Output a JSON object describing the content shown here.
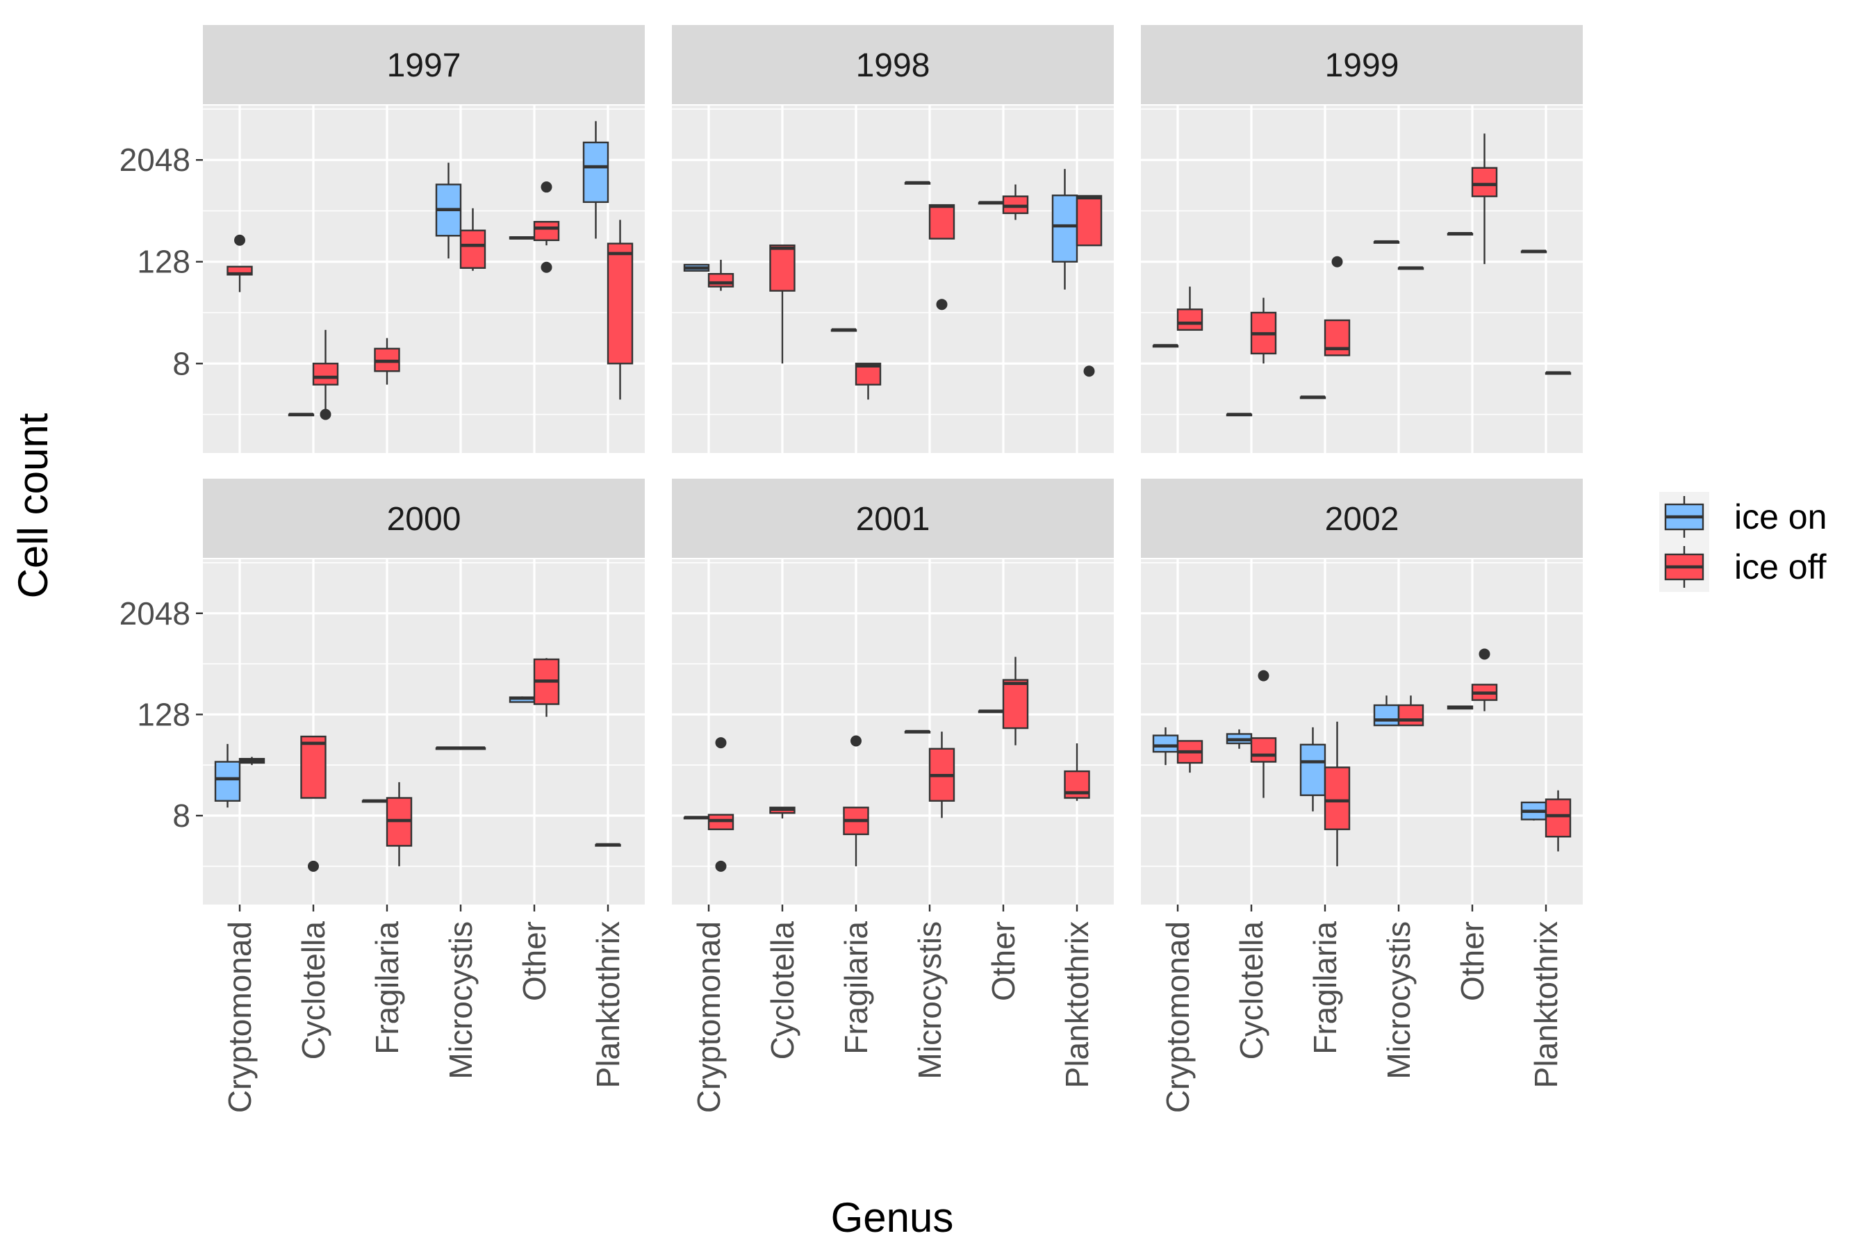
{
  "chart_data": {
    "type": "boxplot",
    "xlabel": "Genus",
    "ylabel": "Cell count",
    "y_scale": "log2",
    "y_ticks": [
      8,
      128,
      2048
    ],
    "ylim": [
      0.7,
      9000
    ],
    "facets": [
      "1997",
      "1998",
      "1999",
      "2000",
      "2001",
      "2002"
    ],
    "categories": [
      "Cryptomonad",
      "Cyclotella",
      "Fragilaria",
      "Microcystis",
      "Other",
      "Planktothrix"
    ],
    "legend": {
      "position": "right",
      "entries": [
        {
          "key": "ice_on",
          "label": "ice on",
          "color": "#80bfff"
        },
        {
          "key": "ice_off",
          "label": "ice off",
          "color": "#ff4d57"
        }
      ]
    },
    "panels": [
      {
        "year": "1997",
        "boxes": [
          {
            "genus": "Cryptomonad",
            "group": "ice_off",
            "min": 56,
            "q1": 90,
            "median": 92,
            "q3": 112,
            "max": 112,
            "outliers": [
              230
            ]
          },
          {
            "genus": "Cyclotella",
            "group": "ice_on",
            "min": 2,
            "q1": 2,
            "median": 2,
            "q3": 2,
            "max": 2,
            "outliers": []
          },
          {
            "genus": "Cyclotella",
            "group": "ice_off",
            "min": 2,
            "q1": 4.5,
            "median": 5.5,
            "q3": 8,
            "max": 20,
            "outliers": [
              2
            ]
          },
          {
            "genus": "Fragilaria",
            "group": "ice_off",
            "min": 4.5,
            "q1": 6.5,
            "median": 8.5,
            "q3": 12,
            "max": 16,
            "outliers": []
          },
          {
            "genus": "Microcystis",
            "group": "ice_on",
            "min": 140,
            "q1": 260,
            "median": 530,
            "q3": 1050,
            "max": 1900,
            "outliers": []
          },
          {
            "genus": "Microcystis",
            "group": "ice_off",
            "min": 100,
            "q1": 108,
            "median": 200,
            "q3": 300,
            "max": 550,
            "outliers": []
          },
          {
            "genus": "Other",
            "group": "ice_on",
            "min": 240,
            "q1": 240,
            "median": 245,
            "q3": 250,
            "max": 250,
            "outliers": []
          },
          {
            "genus": "Other",
            "group": "ice_off",
            "min": 200,
            "q1": 230,
            "median": 320,
            "q3": 380,
            "max": 380,
            "outliers": [
              980,
              110
            ]
          },
          {
            "genus": "Planktothrix",
            "group": "ice_on",
            "min": 240,
            "q1": 650,
            "median": 1700,
            "q3": 3300,
            "max": 5900,
            "outliers": []
          },
          {
            "genus": "Planktothrix",
            "group": "ice_off",
            "min": 3,
            "q1": 8,
            "median": 160,
            "q3": 210,
            "max": 400,
            "outliers": []
          }
        ]
      },
      {
        "year": "1998",
        "boxes": [
          {
            "genus": "Cryptomonad",
            "group": "ice_on",
            "min": 100,
            "q1": 100,
            "median": 108,
            "q3": 118,
            "max": 118,
            "outliers": []
          },
          {
            "genus": "Cryptomonad",
            "group": "ice_off",
            "min": 58,
            "q1": 65,
            "median": 72,
            "q3": 92,
            "max": 135,
            "outliers": []
          },
          {
            "genus": "Cyclotella",
            "group": "ice_off",
            "min": 8,
            "q1": 58,
            "median": 185,
            "q3": 200,
            "max": 200,
            "outliers": []
          },
          {
            "genus": "Fragilaria",
            "group": "ice_on",
            "min": 20,
            "q1": 20,
            "median": 20,
            "q3": 20,
            "max": 20,
            "outliers": []
          },
          {
            "genus": "Fragilaria",
            "group": "ice_off",
            "min": 3,
            "q1": 4.5,
            "median": 7.5,
            "q3": 8,
            "max": 8,
            "outliers": []
          },
          {
            "genus": "Microcystis",
            "group": "ice_on",
            "min": 1100,
            "q1": 1100,
            "median": 1100,
            "q3": 1100,
            "max": 1100,
            "outliers": []
          },
          {
            "genus": "Microcystis",
            "group": "ice_off",
            "min": 240,
            "q1": 240,
            "median": 580,
            "q3": 600,
            "max": 600,
            "outliers": [
              40
            ]
          },
          {
            "genus": "Other",
            "group": "ice_on",
            "min": 640,
            "q1": 640,
            "median": 640,
            "q3": 640,
            "max": 640,
            "outliers": []
          },
          {
            "genus": "Other",
            "group": "ice_off",
            "min": 400,
            "q1": 480,
            "median": 580,
            "q3": 760,
            "max": 1050,
            "outliers": []
          },
          {
            "genus": "Planktothrix",
            "group": "ice_on",
            "min": 60,
            "q1": 128,
            "median": 340,
            "q3": 780,
            "max": 1600,
            "outliers": []
          },
          {
            "genus": "Planktothrix",
            "group": "ice_off",
            "min": 200,
            "q1": 200,
            "median": 730,
            "q3": 770,
            "max": 780,
            "outliers": [
              6.5
            ]
          }
        ]
      },
      {
        "year": "1999",
        "boxes": [
          {
            "genus": "Cryptomonad",
            "group": "ice_on",
            "min": 13,
            "q1": 13,
            "median": 13,
            "q3": 13,
            "max": 13,
            "outliers": []
          },
          {
            "genus": "Cryptomonad",
            "group": "ice_off",
            "min": 20,
            "q1": 20,
            "median": 24,
            "q3": 35,
            "max": 65,
            "outliers": []
          },
          {
            "genus": "Cyclotella",
            "group": "ice_on",
            "min": 2,
            "q1": 2,
            "median": 2,
            "q3": 2,
            "max": 2,
            "outliers": []
          },
          {
            "genus": "Cyclotella",
            "group": "ice_off",
            "min": 8,
            "q1": 10.5,
            "median": 18,
            "q3": 32,
            "max": 48,
            "outliers": []
          },
          {
            "genus": "Fragilaria",
            "group": "ice_on",
            "min": 3.2,
            "q1": 3.2,
            "median": 3.2,
            "q3": 3.2,
            "max": 3.2,
            "outliers": []
          },
          {
            "genus": "Fragilaria",
            "group": "ice_off",
            "min": 10,
            "q1": 10,
            "median": 12,
            "q3": 26,
            "max": 26,
            "outliers": [
              128
            ]
          },
          {
            "genus": "Microcystis",
            "group": "ice_on",
            "min": 220,
            "q1": 220,
            "median": 220,
            "q3": 220,
            "max": 220,
            "outliers": []
          },
          {
            "genus": "Microcystis",
            "group": "ice_off",
            "min": 108,
            "q1": 108,
            "median": 108,
            "q3": 108,
            "max": 108,
            "outliers": []
          },
          {
            "genus": "Other",
            "group": "ice_on",
            "min": 275,
            "q1": 275,
            "median": 275,
            "q3": 275,
            "max": 275,
            "outliers": []
          },
          {
            "genus": "Other",
            "group": "ice_off",
            "min": 120,
            "q1": 760,
            "median": 1050,
            "q3": 1650,
            "max": 4200,
            "outliers": []
          },
          {
            "genus": "Planktothrix",
            "group": "ice_on",
            "min": 170,
            "q1": 170,
            "median": 170,
            "q3": 170,
            "max": 170,
            "outliers": []
          },
          {
            "genus": "Planktothrix",
            "group": "ice_off",
            "min": 6.2,
            "q1": 6.2,
            "median": 6.2,
            "q3": 6.2,
            "max": 6.2,
            "outliers": []
          }
        ]
      },
      {
        "year": "2000",
        "boxes": [
          {
            "genus": "Cryptomonad",
            "group": "ice_on",
            "min": 10,
            "q1": 12,
            "median": 22,
            "q3": 35,
            "max": 57,
            "outliers": []
          },
          {
            "genus": "Cryptomonad",
            "group": "ice_off",
            "min": 32,
            "q1": 34,
            "median": 36,
            "q3": 38,
            "max": 40,
            "outliers": []
          },
          {
            "genus": "Cyclotella",
            "group": "ice_off",
            "min": 13,
            "q1": 13,
            "median": 58,
            "q3": 70,
            "max": 70,
            "outliers": [
              2
            ]
          },
          {
            "genus": "Fragilaria",
            "group": "ice_on",
            "min": 12,
            "q1": 12,
            "median": 12,
            "q3": 12,
            "max": 12,
            "outliers": []
          },
          {
            "genus": "Fragilaria",
            "group": "ice_off",
            "min": 2,
            "q1": 3.5,
            "median": 7,
            "q3": 13,
            "max": 20,
            "outliers": []
          },
          {
            "genus": "Microcystis",
            "group": "ice_on",
            "min": 51,
            "q1": 51,
            "median": 51,
            "q3": 51,
            "max": 51,
            "outliers": []
          },
          {
            "genus": "Microcystis",
            "group": "ice_off",
            "min": 51,
            "q1": 51,
            "median": 51,
            "q3": 51,
            "max": 51,
            "outliers": []
          },
          {
            "genus": "Other",
            "group": "ice_on",
            "min": 180,
            "q1": 180,
            "median": 200,
            "q3": 205,
            "max": 210,
            "outliers": []
          },
          {
            "genus": "Other",
            "group": "ice_off",
            "min": 120,
            "q1": 170,
            "median": 320,
            "q3": 580,
            "max": 600,
            "outliers": []
          },
          {
            "genus": "Planktothrix",
            "group": "ice_off",
            "min": 3.6,
            "q1": 3.6,
            "median": 3.6,
            "q3": 3.6,
            "max": 3.6,
            "outliers": []
          }
        ]
      },
      {
        "year": "2001",
        "boxes": [
          {
            "genus": "Cryptomonad",
            "group": "ice_on",
            "min": 7.6,
            "q1": 7.6,
            "median": 7.6,
            "q3": 7.6,
            "max": 7.6,
            "outliers": []
          },
          {
            "genus": "Cryptomonad",
            "group": "ice_off",
            "min": 5.5,
            "q1": 5.5,
            "median": 7,
            "q3": 8.2,
            "max": 8.2,
            "outliers": [
              59,
              2
            ]
          },
          {
            "genus": "Cyclotella",
            "group": "ice_off",
            "min": 7.4,
            "q1": 8.6,
            "median": 9.5,
            "q3": 10,
            "max": 10,
            "outliers": []
          },
          {
            "genus": "Fragilaria",
            "group": "ice_off",
            "min": 2,
            "q1": 4.8,
            "median": 7,
            "q3": 10,
            "max": 10,
            "outliers": [
              62
            ]
          },
          {
            "genus": "Microcystis",
            "group": "ice_on",
            "min": 80,
            "q1": 80,
            "median": 80,
            "q3": 80,
            "max": 80,
            "outliers": []
          },
          {
            "genus": "Microcystis",
            "group": "ice_off",
            "min": 7.5,
            "q1": 12,
            "median": 24,
            "q3": 50,
            "max": 80,
            "outliers": []
          },
          {
            "genus": "Other",
            "group": "ice_on",
            "min": 140,
            "q1": 140,
            "median": 140,
            "q3": 140,
            "max": 140,
            "outliers": []
          },
          {
            "genus": "Other",
            "group": "ice_off",
            "min": 55,
            "q1": 88,
            "median": 300,
            "q3": 330,
            "max": 620,
            "outliers": []
          },
          {
            "genus": "Planktothrix",
            "group": "ice_off",
            "min": 12,
            "q1": 13,
            "median": 15,
            "q3": 27,
            "max": 58,
            "outliers": []
          }
        ]
      },
      {
        "year": "2002",
        "boxes": [
          {
            "genus": "Cryptomonad",
            "group": "ice_on",
            "min": 32,
            "q1": 46,
            "median": 54,
            "q3": 72,
            "max": 90,
            "outliers": []
          },
          {
            "genus": "Cryptomonad",
            "group": "ice_off",
            "min": 26,
            "q1": 34,
            "median": 46,
            "q3": 62,
            "max": 62,
            "outliers": []
          },
          {
            "genus": "Cyclotella",
            "group": "ice_on",
            "min": 50,
            "q1": 58,
            "median": 64,
            "q3": 75,
            "max": 85,
            "outliers": []
          },
          {
            "genus": "Cyclotella",
            "group": "ice_off",
            "min": 13,
            "q1": 35,
            "median": 42,
            "q3": 67,
            "max": 67,
            "outliers": [
              370
            ]
          },
          {
            "genus": "Fragilaria",
            "group": "ice_on",
            "min": 9,
            "q1": 14,
            "median": 35,
            "q3": 56,
            "max": 90,
            "outliers": []
          },
          {
            "genus": "Fragilaria",
            "group": "ice_off",
            "min": 2,
            "q1": 5.5,
            "median": 12,
            "q3": 30,
            "max": 105,
            "outliers": []
          },
          {
            "genus": "Microcystis",
            "group": "ice_on",
            "min": 95,
            "q1": 95,
            "median": 110,
            "q3": 165,
            "max": 215,
            "outliers": []
          },
          {
            "genus": "Microcystis",
            "group": "ice_off",
            "min": 95,
            "q1": 95,
            "median": 110,
            "q3": 165,
            "max": 215,
            "outliers": []
          },
          {
            "genus": "Other",
            "group": "ice_on",
            "min": 150,
            "q1": 150,
            "median": 155,
            "q3": 160,
            "max": 160,
            "outliers": []
          },
          {
            "genus": "Other",
            "group": "ice_off",
            "min": 140,
            "q1": 190,
            "median": 230,
            "q3": 290,
            "max": 290,
            "outliers": [
              670
            ]
          },
          {
            "genus": "Planktothrix",
            "group": "ice_on",
            "min": 7,
            "q1": 7.2,
            "median": 9,
            "q3": 11.5,
            "max": 11.5,
            "outliers": []
          },
          {
            "genus": "Planktothrix",
            "group": "ice_off",
            "min": 3,
            "q1": 4.5,
            "median": 8,
            "q3": 12.5,
            "max": 16,
            "outliers": []
          }
        ]
      }
    ]
  }
}
